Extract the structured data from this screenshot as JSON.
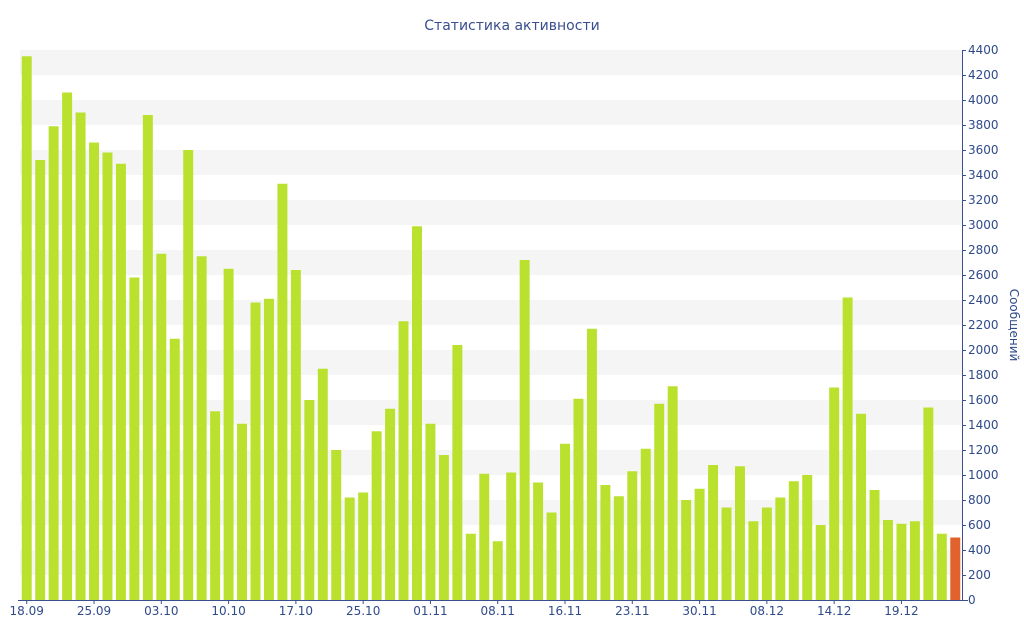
{
  "chart_data": {
    "type": "bar",
    "title": "Статистика активности",
    "ylabel": "Сообщений",
    "ylim": [
      0,
      4400
    ],
    "y_ticks": [
      0,
      200,
      400,
      600,
      800,
      1000,
      1200,
      1400,
      1600,
      1800,
      2000,
      2200,
      2400,
      2600,
      2800,
      3000,
      3200,
      3400,
      3600,
      3800,
      4000,
      4200,
      4400
    ],
    "x_tick_labels": [
      {
        "label": "18.09",
        "index": 0
      },
      {
        "label": "25.09",
        "index": 5
      },
      {
        "label": "03.10",
        "index": 10
      },
      {
        "label": "10.10",
        "index": 15
      },
      {
        "label": "17.10",
        "index": 20
      },
      {
        "label": "25.10",
        "index": 25
      },
      {
        "label": "01.11",
        "index": 30
      },
      {
        "label": "08.11",
        "index": 35
      },
      {
        "label": "16.11",
        "index": 40
      },
      {
        "label": "23.11",
        "index": 45
      },
      {
        "label": "30.11",
        "index": 50
      },
      {
        "label": "08.12",
        "index": 55
      },
      {
        "label": "14.12",
        "index": 60
      },
      {
        "label": "19.12",
        "index": 65
      }
    ],
    "values": [
      4350,
      3520,
      3790,
      4060,
      3900,
      3660,
      3580,
      3490,
      2580,
      3880,
      2770,
      2090,
      3600,
      2750,
      1510,
      2650,
      1410,
      2380,
      2410,
      3330,
      2640,
      1600,
      1850,
      1200,
      820,
      860,
      1350,
      1530,
      2230,
      2990,
      1410,
      1160,
      2040,
      530,
      1010,
      470,
      1020,
      2720,
      940,
      700,
      1250,
      1610,
      2170,
      920,
      830,
      1030,
      1210,
      1570,
      1710,
      800,
      890,
      1080,
      740,
      1070,
      630,
      740,
      820,
      950,
      1000,
      600,
      1700,
      2420,
      1490,
      880,
      640,
      610,
      630,
      1540,
      530,
      500
    ],
    "highlight_index": 69,
    "colors": {
      "bar": "#b9e12e",
      "highlight": "#e2622e",
      "grid_band": "#f5f5f5",
      "axis": "#3a4f8e",
      "text": "#2f4a8a"
    },
    "grid": true
  }
}
